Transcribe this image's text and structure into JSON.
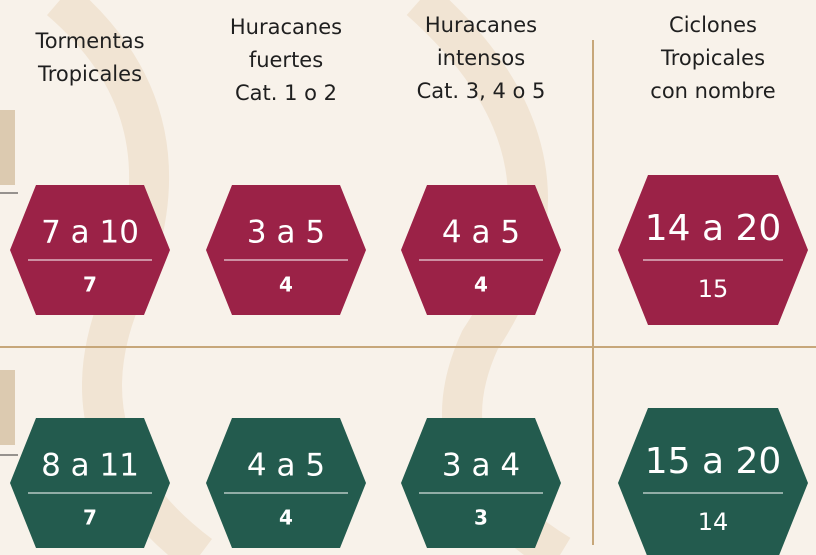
{
  "headers": [
    {
      "lines": [
        "Tormentas",
        "Tropicales"
      ]
    },
    {
      "lines": [
        "Huracanes",
        "fuertes",
        "Cat. 1 o 2"
      ]
    },
    {
      "lines": [
        "Huracanes",
        "intensos",
        "Cat. 3, 4 o 5"
      ]
    },
    {
      "lines": [
        "Ciclones",
        "Tropicales",
        "con nombre"
      ]
    }
  ],
  "rows": [
    {
      "color": "#9b2247",
      "cells": [
        {
          "range": "7 a 10",
          "value": "7"
        },
        {
          "range": "3 a 5",
          "value": "4"
        },
        {
          "range": "4 a 5",
          "value": "4"
        },
        {
          "range": "14 a 20",
          "value": "15"
        }
      ]
    },
    {
      "color": "#235b4e",
      "cells": [
        {
          "range": "8 a 11",
          "value": "7"
        },
        {
          "range": "4 a 5",
          "value": "4"
        },
        {
          "range": "3 a 4",
          "value": "3"
        },
        {
          "range": "15 a 20",
          "value": "14"
        }
      ]
    }
  ]
}
